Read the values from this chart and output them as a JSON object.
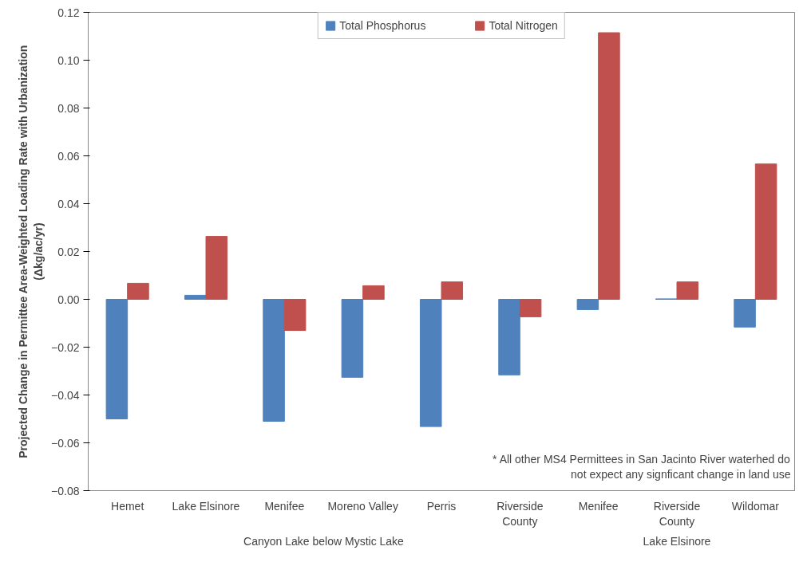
{
  "chart_data": {
    "type": "bar",
    "ylabel": "Projected Change in Permittee Area-Weighted Loading Rate with Urbanization\n(Δkg/ac/yr)",
    "categories": [
      "Hemet",
      "Lake Elsinore",
      "Menifee",
      "Moreno Valley",
      "Perris",
      "Riverside County",
      "Menifee",
      "Riverside County",
      "Wildomar"
    ],
    "series": [
      {
        "name": "Total Phosphorus",
        "color": "#4f81bd",
        "values": [
          -0.05,
          0.0017,
          -0.051,
          -0.0326,
          -0.0532,
          -0.0316,
          -0.0043,
          0.0002,
          -0.0116
        ]
      },
      {
        "name": "Total Nitrogen",
        "color": "#c0504d",
        "values": [
          0.0067,
          0.0263,
          -0.013,
          0.0057,
          0.0073,
          -0.0073,
          0.1115,
          0.0073,
          0.0566
        ]
      }
    ],
    "ylim": [
      -0.08,
      0.12
    ],
    "yticks": [
      -0.08,
      -0.06,
      -0.04,
      -0.02,
      {
        "value": 0,
        "label": "0.00"
      },
      0.02,
      0.04,
      0.06,
      0.08,
      {
        "value": 0.1,
        "label": "0.10"
      },
      0.12
    ],
    "grid": false,
    "legend": "top",
    "annotations": [
      "Canyon Lake below Mystic Lake",
      "Lake Elsinore",
      "* All other MS4 Permittees in San Jacinto River waterhed do\nnot expect any signficant change in land use"
    ]
  }
}
